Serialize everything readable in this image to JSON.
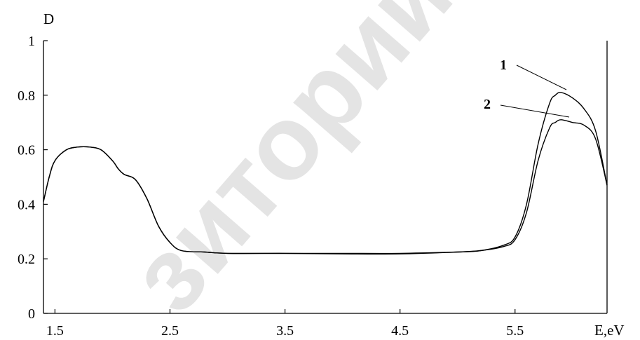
{
  "watermark": "зиторий",
  "chart_data": {
    "type": "line",
    "ylabel": "D",
    "xlabel": "E,eV",
    "xlim": [
      1.4,
      6.3
    ],
    "ylim": [
      0,
      1
    ],
    "xticks": [
      1.5,
      2.5,
      3.5,
      4.5,
      5.5
    ],
    "yticks": [
      0,
      0.2,
      0.4,
      0.6,
      0.8,
      1
    ],
    "xtick_labels": [
      "1.5",
      "2.5",
      "3.5",
      "4.5",
      "5.5"
    ],
    "ytick_labels": [
      "0",
      "0.2",
      "0.4",
      "0.6",
      "0.8",
      "1"
    ],
    "grid": false,
    "series": [
      {
        "name": "1",
        "x": [
          1.4,
          1.45,
          1.5,
          1.6,
          1.7,
          1.8,
          1.9,
          2.0,
          2.05,
          2.1,
          2.2,
          2.3,
          2.4,
          2.5,
          2.6,
          2.8,
          3.0,
          3.5,
          4.0,
          4.5,
          5.0,
          5.2,
          5.4,
          5.5,
          5.6,
          5.7,
          5.8,
          5.85,
          5.9,
          6.0,
          6.1,
          6.2,
          6.3
        ],
        "y": [
          0.41,
          0.5,
          0.56,
          0.6,
          0.61,
          0.61,
          0.6,
          0.56,
          0.53,
          0.51,
          0.49,
          0.42,
          0.32,
          0.26,
          0.23,
          0.225,
          0.22,
          0.22,
          0.22,
          0.22,
          0.225,
          0.23,
          0.25,
          0.28,
          0.4,
          0.62,
          0.77,
          0.8,
          0.81,
          0.79,
          0.75,
          0.67,
          0.47
        ]
      },
      {
        "name": "2",
        "x": [
          1.4,
          1.45,
          1.5,
          1.6,
          1.7,
          1.8,
          1.9,
          2.0,
          2.05,
          2.1,
          2.2,
          2.3,
          2.4,
          2.5,
          2.6,
          2.8,
          3.0,
          3.5,
          4.0,
          4.5,
          5.0,
          5.2,
          5.4,
          5.5,
          5.6,
          5.7,
          5.8,
          5.85,
          5.9,
          6.0,
          6.1,
          6.2,
          6.3
        ],
        "y": [
          0.41,
          0.5,
          0.56,
          0.6,
          0.61,
          0.61,
          0.6,
          0.56,
          0.53,
          0.51,
          0.49,
          0.42,
          0.32,
          0.26,
          0.23,
          0.225,
          0.22,
          0.22,
          0.218,
          0.218,
          0.225,
          0.23,
          0.245,
          0.27,
          0.37,
          0.56,
          0.68,
          0.7,
          0.71,
          0.7,
          0.69,
          0.64,
          0.47
        ]
      }
    ]
  }
}
